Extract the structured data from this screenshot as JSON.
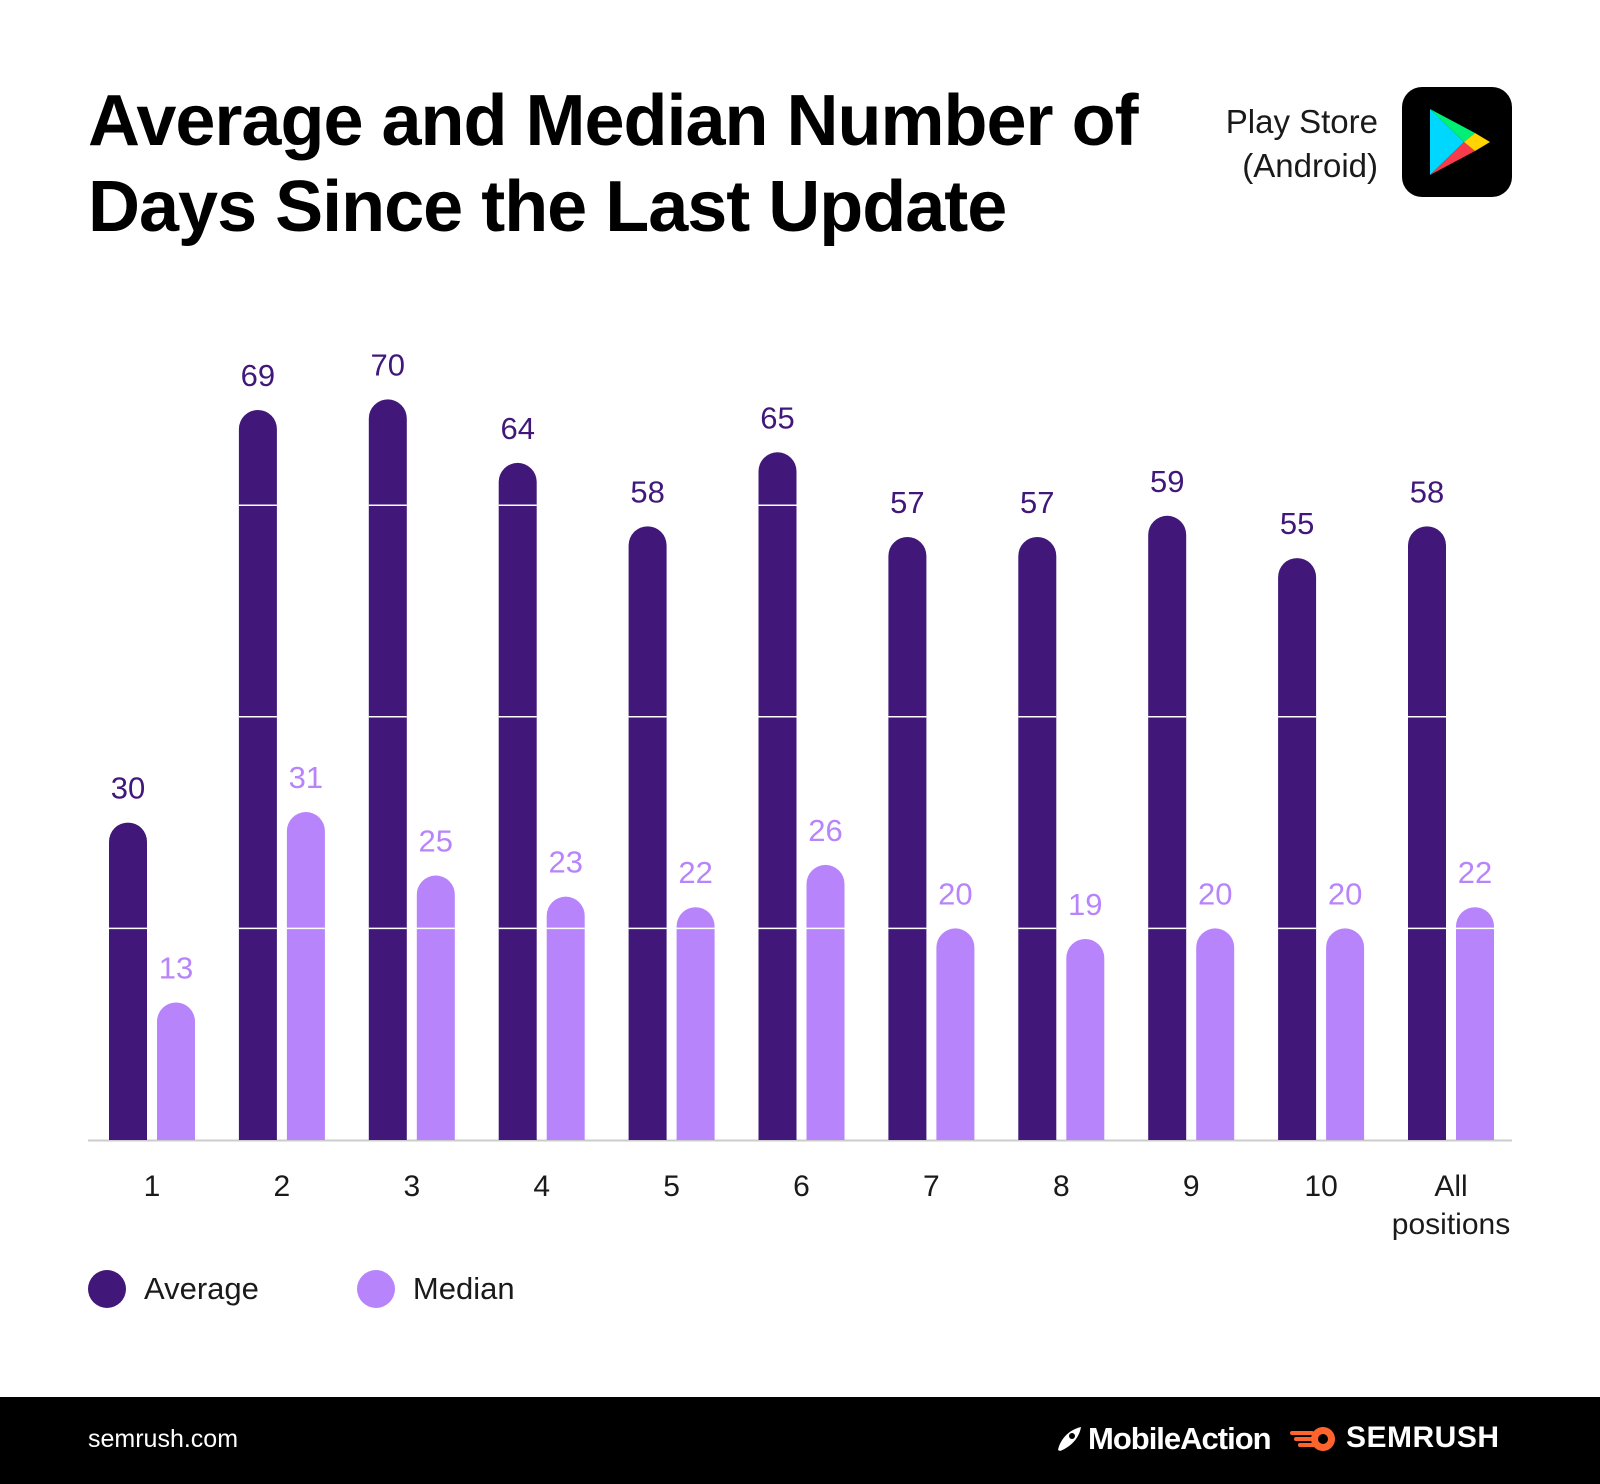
{
  "header": {
    "title": "Average and Median Number of Days Since the Last Update",
    "store_line1": "Play Store",
    "store_line2": "(Android)",
    "store_icon": "google-play-icon"
  },
  "colors": {
    "average": "#41187a",
    "median": "#b884fb",
    "average_label": "#41187a",
    "median_label": "#b884fb",
    "axis": "#cccccc",
    "footer_bg": "#000000",
    "semrush_orange": "#ff642d"
  },
  "chart_data": {
    "type": "bar",
    "title": "Average and Median Number of Days Since the Last Update",
    "xlabel": "",
    "ylabel": "",
    "ylim": [
      0,
      75
    ],
    "grid": "horizontal lines drawn inside bars",
    "legend": "bottom-left",
    "categories": [
      "1",
      "2",
      "3",
      "4",
      "5",
      "6",
      "7",
      "8",
      "9",
      "10",
      "All positions"
    ],
    "series": [
      {
        "name": "Average",
        "values": [
          30,
          69,
          70,
          64,
          58,
          65,
          57,
          57,
          59,
          55,
          58
        ]
      },
      {
        "name": "Median",
        "values": [
          13,
          31,
          25,
          23,
          22,
          26,
          20,
          19,
          20,
          20,
          22
        ]
      }
    ]
  },
  "legend": {
    "average_label": "Average",
    "median_label": "Median"
  },
  "footer": {
    "url": "semrush.com",
    "logo_mobileaction": "MobileAction",
    "logo_semrush": "SEMRUSH"
  }
}
